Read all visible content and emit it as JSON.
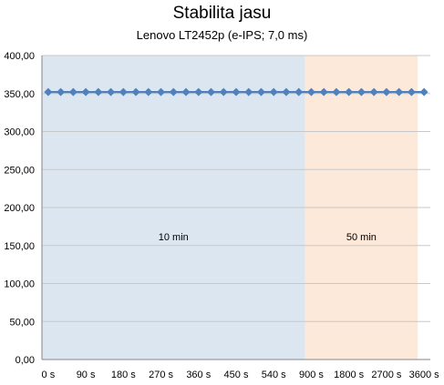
{
  "title": "Stabilita jasu",
  "subtitle": "Lenovo  LT2452p (e-IPS; 7,0 ms)",
  "colors": {
    "region_1": "#dce6f1",
    "region_2": "#fde9d9",
    "series": "#4f81bd",
    "grid": "#c8c8c8"
  },
  "chart_data": {
    "type": "line",
    "x_tick_labels": [
      "0 s",
      "90 s",
      "180 s",
      "270 s",
      "360 s",
      "450 s",
      "540 s",
      "900 s",
      "1800 s",
      "2700 s",
      "3600 s"
    ],
    "y_tick_labels": [
      "0,00",
      "50,00",
      "100,00",
      "150,00",
      "200,00",
      "250,00",
      "300,00",
      "350,00",
      "400,00"
    ],
    "ylim": [
      0,
      400
    ],
    "y_step": 50,
    "grid": true,
    "legend": "none",
    "regions": [
      {
        "label": "10 min",
        "from_index": 0,
        "to_index": 21
      },
      {
        "label": "50 min",
        "from_index": 21,
        "to_index": 30
      }
    ],
    "series": [
      {
        "marker": "diamond",
        "values": [
          352,
          352,
          352,
          352,
          352,
          352,
          352,
          352,
          352,
          352,
          352,
          352,
          352,
          352,
          352,
          352,
          352,
          352,
          352,
          352,
          352,
          352,
          352,
          352,
          352,
          352,
          352,
          352,
          352,
          352,
          352
        ]
      }
    ]
  }
}
